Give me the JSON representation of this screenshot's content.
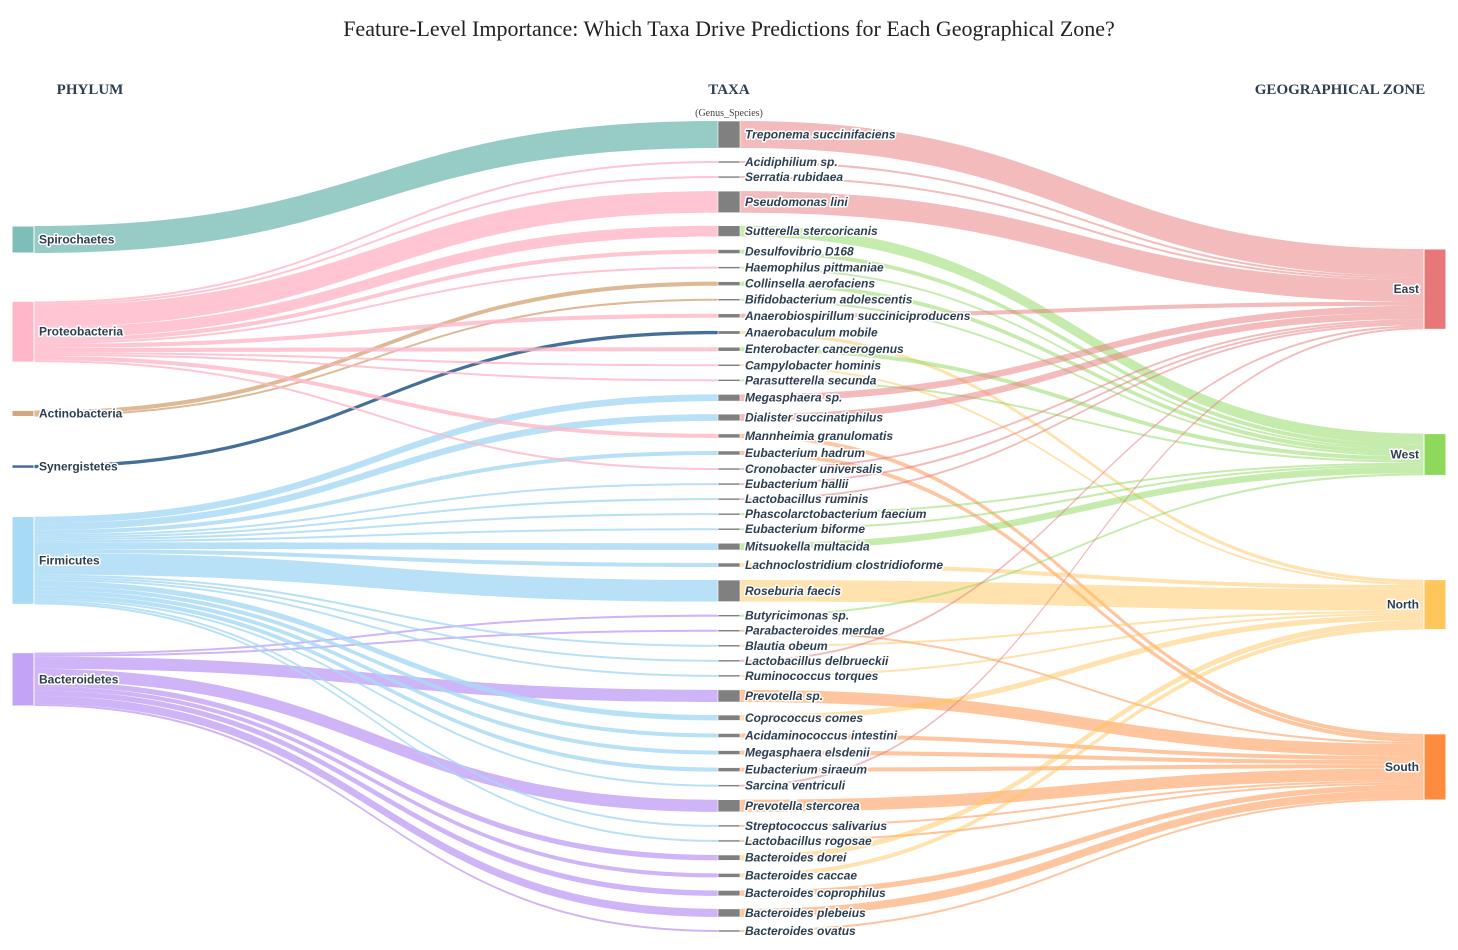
{
  "chart_data": {
    "type": "sankey",
    "title": "Feature-Level Importance: Which Taxa Drive Predictions for Each Geographical Zone?",
    "column_headers": {
      "phylum": "PHYLUM",
      "taxa": "TAXA",
      "taxa_sub": "(Genus_Species)",
      "zone": "GEOGRAPHICAL ZONE"
    },
    "phyla": [
      {
        "name": "Spirochaetes",
        "color": "#7dbfb8"
      },
      {
        "name": "Proteobacteria",
        "color": "#ffb6c8"
      },
      {
        "name": "Actinobacteria",
        "color": "#d4a87a"
      },
      {
        "name": "Synergistetes",
        "color": "#3a6795"
      },
      {
        "name": "Firmicutes",
        "color": "#a6daf5"
      },
      {
        "name": "Bacteroidetes",
        "color": "#c3a3f5"
      }
    ],
    "zones": [
      {
        "name": "East",
        "color": "#e8777a"
      },
      {
        "name": "West",
        "color": "#8ed95c"
      },
      {
        "name": "North",
        "color": "#ffc65c"
      },
      {
        "name": "South",
        "color": "#ff8c3e"
      }
    ],
    "taxa": [
      {
        "name": "Treponema succinifaciens",
        "phylum": "Spirochaetes",
        "zone": "East",
        "value": 20
      },
      {
        "name": "Acidiphilium sp.",
        "phylum": "Proteobacteria",
        "zone": "East",
        "value": 1.5
      },
      {
        "name": "Serratia rubidaea",
        "phylum": "Proteobacteria",
        "zone": "East",
        "value": 1.5
      },
      {
        "name": "Pseudomonas lini",
        "phylum": "Proteobacteria",
        "zone": "East",
        "value": 16
      },
      {
        "name": "Sutterella stercoricanis",
        "phylum": "Proteobacteria",
        "zone": "West",
        "value": 8
      },
      {
        "name": "Desulfovibrio D168",
        "phylum": "Proteobacteria",
        "zone": "West",
        "value": 3
      },
      {
        "name": "Haemophilus pittmaniae",
        "phylum": "Proteobacteria",
        "zone": "West",
        "value": 1.5
      },
      {
        "name": "Collinsella aerofaciens",
        "phylum": "Actinobacteria",
        "zone": "West",
        "value": 3
      },
      {
        "name": "Bifidobacterium adolescentis",
        "phylum": "Actinobacteria",
        "zone": "West",
        "value": 1.5
      },
      {
        "name": "Anaerobiospirillum succiniciproducens",
        "phylum": "Proteobacteria",
        "zone": "East",
        "value": 3
      },
      {
        "name": "Anaerobaculum mobile",
        "phylum": "Synergistetes",
        "zone": "North",
        "value": 2.5
      },
      {
        "name": "Enterobacter cancerogenus",
        "phylum": "Proteobacteria",
        "zone": "West",
        "value": 3
      },
      {
        "name": "Campylobacter hominis",
        "phylum": "Proteobacteria",
        "zone": "North",
        "value": 1.5
      },
      {
        "name": "Parasutterella secunda",
        "phylum": "Proteobacteria",
        "zone": "West",
        "value": 1.5
      },
      {
        "name": "Megasphaera sp.",
        "phylum": "Firmicutes",
        "zone": "East",
        "value": 5
      },
      {
        "name": "Dialister succinatiphilus",
        "phylum": "Firmicutes",
        "zone": "East",
        "value": 5
      },
      {
        "name": "Mannheimia granulomatis",
        "phylum": "Proteobacteria",
        "zone": "South",
        "value": 3
      },
      {
        "name": "Eubacterium hadrum",
        "phylum": "Firmicutes",
        "zone": "South",
        "value": 3
      },
      {
        "name": "Cronobacter universalis",
        "phylum": "Proteobacteria",
        "zone": "East",
        "value": 1.5
      },
      {
        "name": "Eubacterium hallii",
        "phylum": "Firmicutes",
        "zone": "East",
        "value": 1.5
      },
      {
        "name": "Lactobacillus ruminis",
        "phylum": "Firmicutes",
        "zone": "East",
        "value": 1.5
      },
      {
        "name": "Phascolarctobacterium faecium",
        "phylum": "Firmicutes",
        "zone": "West",
        "value": 1.5
      },
      {
        "name": "Eubacterium biforme",
        "phylum": "Firmicutes",
        "zone": "West",
        "value": 1.5
      },
      {
        "name": "Mitsuokella multacida",
        "phylum": "Firmicutes",
        "zone": "West",
        "value": 5
      },
      {
        "name": "Lachnoclostridium clostridioforme",
        "phylum": "Firmicutes",
        "zone": "North",
        "value": 3
      },
      {
        "name": "Roseburia faecis",
        "phylum": "Firmicutes",
        "zone": "North",
        "value": 16
      },
      {
        "name": "Butyricimonas sp.",
        "phylum": "Bacteroidetes",
        "zone": "West",
        "value": 1.5
      },
      {
        "name": "Parabacteroides merdae",
        "phylum": "Bacteroidetes",
        "zone": "South",
        "value": 1.5
      },
      {
        "name": "Blautia obeum",
        "phylum": "Firmicutes",
        "zone": "North",
        "value": 1.5
      },
      {
        "name": "Lactobacillus delbrueckii",
        "phylum": "Firmicutes",
        "zone": "East",
        "value": 1.5
      },
      {
        "name": "Ruminococcus torques",
        "phylum": "Firmicutes",
        "zone": "North",
        "value": 1.5
      },
      {
        "name": "Prevotella sp.",
        "phylum": "Bacteroidetes",
        "zone": "South",
        "value": 9
      },
      {
        "name": "Coprococcus comes",
        "phylum": "Firmicutes",
        "zone": "North",
        "value": 4
      },
      {
        "name": "Acidaminococcus intestini",
        "phylum": "Firmicutes",
        "zone": "South",
        "value": 3
      },
      {
        "name": "Megasphaera elsdenii",
        "phylum": "Firmicutes",
        "zone": "South",
        "value": 3
      },
      {
        "name": "Eubacterium siraeum",
        "phylum": "Firmicutes",
        "zone": "South",
        "value": 3
      },
      {
        "name": "Sarcina ventriculi",
        "phylum": "Firmicutes",
        "zone": "East",
        "value": 1.5
      },
      {
        "name": "Prevotella stercorea",
        "phylum": "Bacteroidetes",
        "zone": "South",
        "value": 9
      },
      {
        "name": "Streptococcus salivarius",
        "phylum": "Firmicutes",
        "zone": "South",
        "value": 1.5
      },
      {
        "name": "Lactobacillus rogosae",
        "phylum": "Firmicutes",
        "zone": "South",
        "value": 1.5
      },
      {
        "name": "Bacteroides dorei",
        "phylum": "Bacteroidetes",
        "zone": "North",
        "value": 4
      },
      {
        "name": "Bacteroides caccae",
        "phylum": "Bacteroidetes",
        "zone": "North",
        "value": 3
      },
      {
        "name": "Bacteroides coprophilus",
        "phylum": "Bacteroidetes",
        "zone": "South",
        "value": 4
      },
      {
        "name": "Bacteroides plebeius",
        "phylum": "Bacteroidetes",
        "zone": "South",
        "value": 6
      },
      {
        "name": "Bacteroides ovatus",
        "phylum": "Bacteroidetes",
        "zone": "South",
        "value": 1.5
      }
    ]
  }
}
